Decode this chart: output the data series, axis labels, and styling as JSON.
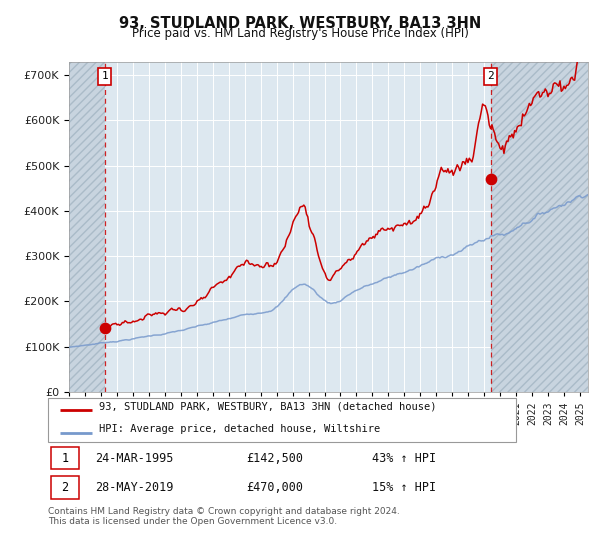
{
  "title": "93, STUDLAND PARK, WESTBURY, BA13 3HN",
  "subtitle": "Price paid vs. HM Land Registry's House Price Index (HPI)",
  "legend_line1": "93, STUDLAND PARK, WESTBURY, BA13 3HN (detached house)",
  "legend_line2": "HPI: Average price, detached house, Wiltshire",
  "annotation1_date": "24-MAR-1995",
  "annotation1_price": "£142,500",
  "annotation1_hpi": "43% ↑ HPI",
  "annotation2_date": "28-MAY-2019",
  "annotation2_price": "£470,000",
  "annotation2_hpi": "15% ↑ HPI",
  "footer": "Contains HM Land Registry data © Crown copyright and database right 2024.\nThis data is licensed under the Open Government Licence v3.0.",
  "red_color": "#cc0000",
  "blue_color": "#7799cc",
  "bg_color": "#dde8f0",
  "grid_color": "#ffffff",
  "ylim": [
    0,
    730000
  ],
  "yticks": [
    0,
    100000,
    200000,
    300000,
    400000,
    500000,
    600000,
    700000
  ],
  "sale1_x": 1995.23,
  "sale1_y": 142500,
  "sale2_x": 2019.41,
  "sale2_y": 470000,
  "xmin": 1993.0,
  "xmax": 2025.5
}
